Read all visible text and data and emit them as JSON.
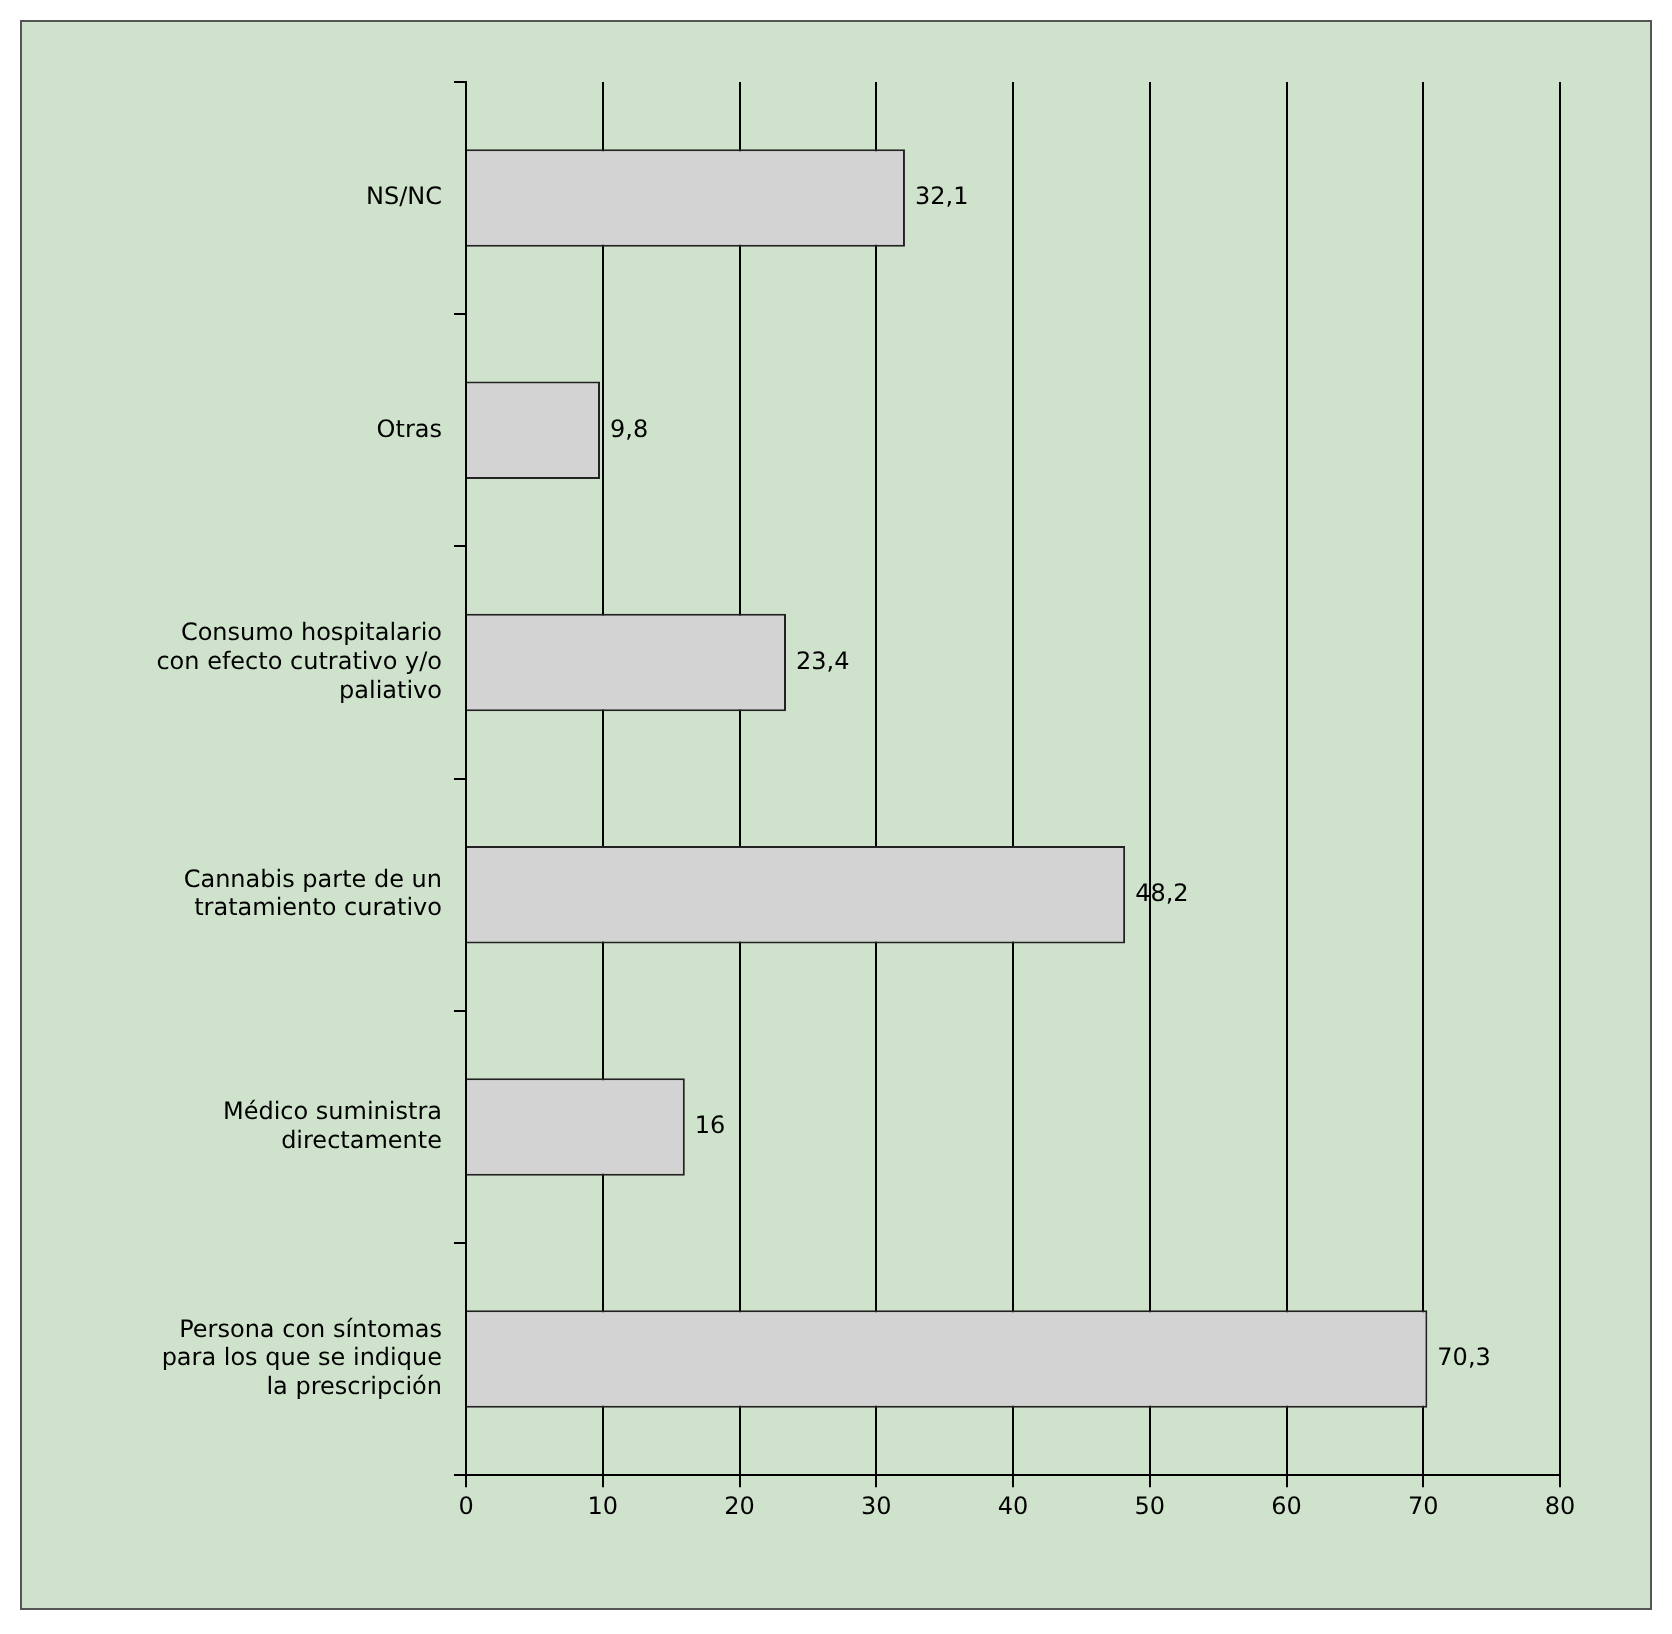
{
  "chart_data": {
    "type": "bar",
    "orientation": "horizontal",
    "categories": [
      "NS/NC",
      "Otras",
      "Consumo hospitalario con efecto cutrativo y/o paliativo",
      "Cannabis parte de un tratamiento curativo",
      "Médico suministra directamente",
      "Persona con síntomas para los que se indique la prescripción"
    ],
    "values": [
      32.1,
      9.8,
      23.4,
      48.2,
      16,
      70.3
    ],
    "value_labels": [
      "32,1",
      "9,8",
      "23,4",
      "48,2",
      "16",
      "70,3"
    ],
    "color": "#d3d3d3",
    "xlim": [
      0,
      80
    ],
    "xticks": [
      0,
      10,
      20,
      30,
      40,
      50,
      60,
      70,
      80
    ],
    "grid": "x",
    "legend": false
  }
}
